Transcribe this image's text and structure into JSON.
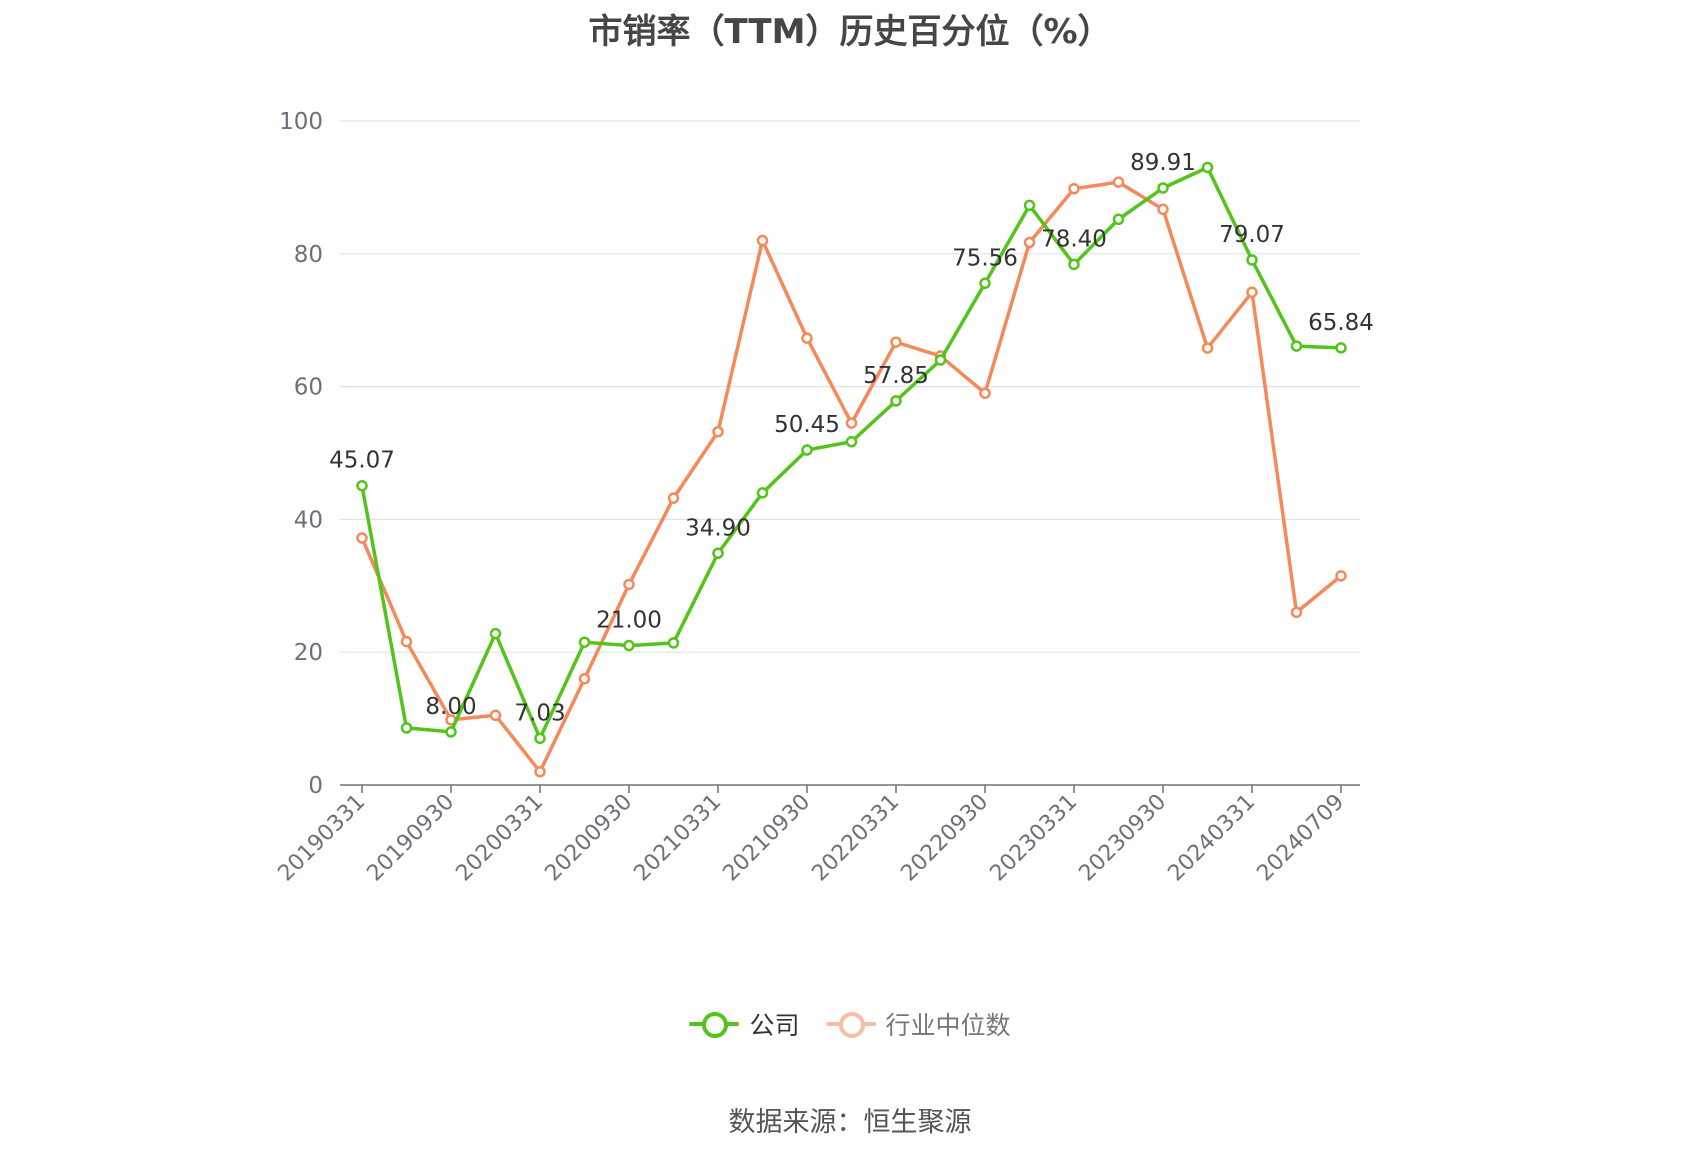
{
  "title": "市销率（TTM）历史百分位（%）",
  "source": "数据来源：恒生聚源",
  "colors": {
    "company": "#52c41a",
    "industry": "#f4895a",
    "grid": "#dfe3ef",
    "axis": "#6e7079",
    "tick_text": "#6e7079",
    "label_text": "#333333"
  },
  "legend": [
    {
      "name": "公司",
      "color": "#52c41a"
    },
    {
      "name": "行业中位数",
      "color": "#f4895a"
    }
  ],
  "chart_data": {
    "type": "line",
    "x": [
      "20190331",
      "20190630",
      "20190930",
      "20191231",
      "20200331",
      "20200630",
      "20200930",
      "20201231",
      "20210331",
      "20210630",
      "20210930",
      "20211231",
      "20220331",
      "20220630",
      "20220930",
      "20221231",
      "20230331",
      "20230630",
      "20230930",
      "20231231",
      "20240331",
      "20240630",
      "20240709"
    ],
    "x_tick_labels": [
      "20190331",
      "20190930",
      "20200331",
      "20200930",
      "20210331",
      "20210930",
      "20220331",
      "20220930",
      "20230331",
      "20230930",
      "20240331",
      "20240709"
    ],
    "ylim": [
      0,
      100
    ],
    "y_ticks": [
      0,
      20,
      40,
      60,
      80,
      100
    ],
    "grid": true,
    "legend_position": "bottom-center",
    "series": [
      {
        "name": "公司",
        "values": [
          45.07,
          8.6,
          8.0,
          22.8,
          7.03,
          21.5,
          21.0,
          21.4,
          34.9,
          44.0,
          50.45,
          51.7,
          57.85,
          64.0,
          75.56,
          87.3,
          78.4,
          85.2,
          89.91,
          93.0,
          79.07,
          66.1,
          65.84
        ],
        "labels": [
          "45.07",
          "",
          "8.00",
          "",
          "7.03",
          "",
          "21.00",
          "",
          "34.90",
          "",
          "50.45",
          "",
          "57.85",
          "",
          "75.56",
          "",
          "78.40",
          "",
          "89.91",
          "",
          "79.07",
          "",
          "65.84"
        ]
      },
      {
        "name": "行业中位数",
        "values": [
          37.2,
          21.6,
          9.8,
          10.5,
          2.0,
          16.0,
          30.2,
          43.2,
          53.2,
          82.0,
          67.3,
          54.5,
          66.7,
          64.6,
          59.0,
          81.7,
          89.8,
          90.8,
          86.7,
          65.8,
          74.2,
          26.0,
          31.5
        ]
      }
    ]
  }
}
